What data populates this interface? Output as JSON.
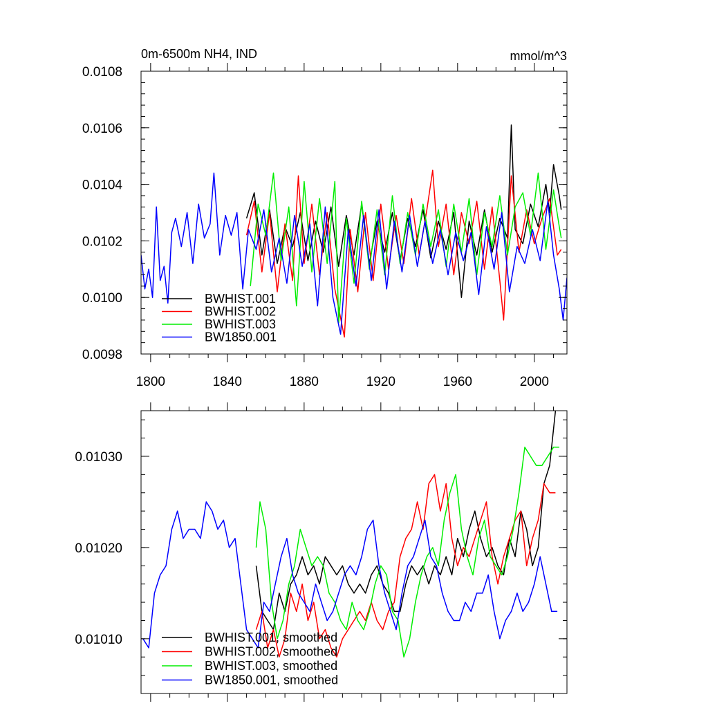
{
  "chart_data": [
    {
      "type": "line",
      "title": "0m-6500m NH4, IND",
      "units": "mmol/m^3",
      "ylim": [
        0.0098,
        0.0108
      ],
      "xlim": [
        1795,
        2017
      ],
      "yticks": [
        0.0098,
        0.01,
        0.0102,
        0.0104,
        0.0106,
        0.0108
      ],
      "ytick_labels": [
        "0.0098",
        "0.0100",
        "0.0102",
        "0.0104",
        "0.0106",
        "0.0108"
      ],
      "xticks": [
        1800,
        1840,
        1880,
        1920,
        1960,
        2000
      ],
      "xtick_labels": [
        "1800",
        "1840",
        "1880",
        "1920",
        "1960",
        "2000"
      ],
      "grid": false,
      "legend_position": "bottom-left",
      "series": [
        {
          "name": "BWHIST.001",
          "color": "#000000",
          "x": [
            1850,
            1854,
            1858,
            1862,
            1866,
            1870,
            1874,
            1878,
            1882,
            1886,
            1890,
            1894,
            1898,
            1902,
            1906,
            1910,
            1914,
            1918,
            1922,
            1926,
            1930,
            1934,
            1938,
            1942,
            1946,
            1950,
            1954,
            1958,
            1962,
            1966,
            1970,
            1974,
            1978,
            1982,
            1986,
            1988,
            1990,
            1994,
            1998,
            2002,
            2006,
            2008,
            2010,
            2013,
            2014
          ],
          "y": [
            0.01028,
            0.01037,
            0.01015,
            0.01031,
            0.01012,
            0.01025,
            0.01018,
            0.0103,
            0.01013,
            0.01027,
            0.01016,
            0.01032,
            0.01011,
            0.01029,
            0.01015,
            0.01033,
            0.01012,
            0.01027,
            0.01016,
            0.0103,
            0.01013,
            0.01028,
            0.01018,
            0.01031,
            0.01014,
            0.01027,
            0.01017,
            0.0103,
            0.01,
            0.01027,
            0.01015,
            0.01031,
            0.01016,
            0.01028,
            0.01021,
            0.01061,
            0.01024,
            0.01019,
            0.01033,
            0.01025,
            0.0104,
            0.0103,
            0.01047,
            0.01036,
            0.01031
          ]
        },
        {
          "name": "BWHIST.002",
          "color": "#ff0000",
          "x": [
            1850,
            1854,
            1858,
            1862,
            1866,
            1870,
            1874,
            1877,
            1880,
            1884,
            1888,
            1892,
            1896,
            1901,
            1904,
            1908,
            1912,
            1916,
            1920,
            1924,
            1928,
            1932,
            1936,
            1940,
            1944,
            1947,
            1950,
            1954,
            1958,
            1962,
            1966,
            1970,
            1974,
            1978,
            1982,
            1984,
            1988,
            1992,
            1996,
            2000,
            2004,
            2008,
            2012,
            2014
          ],
          "y": [
            0.01022,
            0.01034,
            0.01009,
            0.0103,
            0.01002,
            0.01026,
            0.01006,
            0.01043,
            0.01012,
            0.01033,
            0.01008,
            0.0103,
            0.01003,
            0.00986,
            0.01024,
            0.01002,
            0.0103,
            0.01006,
            0.01033,
            0.0101,
            0.01029,
            0.01012,
            0.01035,
            0.01015,
            0.01031,
            0.01045,
            0.01018,
            0.01033,
            0.01008,
            0.0103,
            0.01019,
            0.01034,
            0.0101,
            0.01032,
            0.01006,
            0.00992,
            0.01043,
            0.01016,
            0.01031,
            0.01019,
            0.01028,
            0.01035,
            0.01015,
            0.01017
          ]
        },
        {
          "name": "BWHIST.003",
          "color": "#00ee00",
          "x": [
            1852,
            1856,
            1860,
            1864,
            1868,
            1872,
            1876,
            1880,
            1884,
            1888,
            1892,
            1896,
            1898,
            1902,
            1906,
            1910,
            1914,
            1918,
            1922,
            1926,
            1930,
            1934,
            1938,
            1942,
            1946,
            1950,
            1954,
            1958,
            1962,
            1966,
            1970,
            1974,
            1978,
            1982,
            1986,
            1990,
            1994,
            1998,
            2002,
            2006,
            2010,
            2013,
            2014
          ],
          "y": [
            0.01004,
            0.01033,
            0.01022,
            0.01044,
            0.01013,
            0.01032,
            0.00997,
            0.01041,
            0.01009,
            0.01035,
            0.01012,
            0.01041,
            0.00991,
            0.01028,
            0.01005,
            0.01034,
            0.0101,
            0.01031,
            0.01008,
            0.01036,
            0.01012,
            0.0103,
            0.01015,
            0.01033,
            0.01018,
            0.01031,
            0.01011,
            0.01033,
            0.01016,
            0.01035,
            0.01008,
            0.0103,
            0.01018,
            0.01036,
            0.01015,
            0.01032,
            0.01037,
            0.01022,
            0.01044,
            0.01017,
            0.01038,
            0.01025,
            0.01021
          ]
        },
        {
          "name": "BW1850.001",
          "color": "#0000ff",
          "x": [
            1795,
            1797,
            1799,
            1801,
            1803,
            1805,
            1807,
            1809,
            1811,
            1813,
            1816,
            1819,
            1822,
            1825,
            1828,
            1831,
            1833,
            1836,
            1839,
            1842,
            1845,
            1848,
            1851,
            1855,
            1859,
            1863,
            1867,
            1871,
            1875,
            1879,
            1883,
            1887,
            1891,
            1895,
            1899,
            1903,
            1907,
            1911,
            1915,
            1919,
            1923,
            1927,
            1931,
            1935,
            1939,
            1943,
            1947,
            1951,
            1955,
            1959,
            1963,
            1967,
            1971,
            1975,
            1979,
            1983,
            1987,
            1991,
            1995,
            1999,
            2003,
            2007,
            2010,
            2013,
            2015,
            2017
          ],
          "y": [
            0.01015,
            0.01003,
            0.0101,
            0.01,
            0.01032,
            0.01006,
            0.01011,
            0.00998,
            0.01023,
            0.01028,
            0.01018,
            0.0103,
            0.01012,
            0.01033,
            0.01021,
            0.01026,
            0.01044,
            0.01015,
            0.01029,
            0.01022,
            0.0103,
            0.01003,
            0.01024,
            0.01017,
            0.01031,
            0.01009,
            0.01021,
            0.01005,
            0.01029,
            0.01011,
            0.01026,
            0.00997,
            0.01032,
            0.01,
            0.00987,
            0.01024,
            0.01004,
            0.01029,
            0.01006,
            0.01031,
            0.01003,
            0.01027,
            0.01009,
            0.01029,
            0.01011,
            0.01027,
            0.01012,
            0.01024,
            0.01008,
            0.01023,
            0.01013,
            0.01023,
            0.01001,
            0.01025,
            0.0101,
            0.0103,
            0.01002,
            0.01018,
            0.01012,
            0.01024,
            0.01013,
            0.01034,
            0.01015,
            0.01003,
            0.00992,
            0.01007
          ]
        }
      ]
    },
    {
      "type": "line",
      "ylim": [
        0.01004,
        0.01035
      ],
      "xlim": [
        1795,
        2017
      ],
      "yticks": [
        0.0101,
        0.0102,
        0.0103
      ],
      "ytick_labels": [
        "0.01010",
        "0.01020",
        "0.01030"
      ],
      "xticks": [
        1800,
        1840,
        1880,
        1920,
        1960,
        2000
      ],
      "grid": false,
      "legend_position": "bottom-left",
      "series": [
        {
          "name": "BWHIST.001, smoothed",
          "color": "#000000",
          "x": [
            1855,
            1858,
            1861,
            1864,
            1867,
            1870,
            1873,
            1876,
            1879,
            1882,
            1885,
            1888,
            1891,
            1894,
            1897,
            1900,
            1903,
            1906,
            1909,
            1912,
            1915,
            1918,
            1921,
            1924,
            1927,
            1930,
            1933,
            1936,
            1939,
            1942,
            1945,
            1948,
            1951,
            1954,
            1957,
            1960,
            1963,
            1966,
            1969,
            1972,
            1975,
            1978,
            1981,
            1984,
            1987,
            1990,
            1993,
            1996,
            1999,
            2002,
            2005,
            2008,
            2011
          ],
          "y": [
            0.01018,
            0.01013,
            0.01012,
            0.01011,
            0.01015,
            0.01013,
            0.01016,
            0.01017,
            0.01019,
            0.01017,
            0.01018,
            0.01016,
            0.01019,
            0.01018,
            0.01017,
            0.01018,
            0.01016,
            0.01015,
            0.01016,
            0.01015,
            0.01017,
            0.01018,
            0.01016,
            0.01015,
            0.01013,
            0.01013,
            0.01016,
            0.01018,
            0.01017,
            0.01018,
            0.01016,
            0.01018,
            0.01017,
            0.01019,
            0.01017,
            0.01021,
            0.01019,
            0.01022,
            0.01024,
            0.01021,
            0.01019,
            0.0102,
            0.01018,
            0.01017,
            0.01021,
            0.01019,
            0.01024,
            0.01022,
            0.01018,
            0.0102,
            0.01027,
            0.01029,
            0.01035
          ]
        },
        {
          "name": "BWHIST.002, smoothed",
          "color": "#ff0000",
          "x": [
            1855,
            1858,
            1861,
            1864,
            1867,
            1870,
            1873,
            1876,
            1879,
            1882,
            1885,
            1888,
            1891,
            1894,
            1897,
            1900,
            1903,
            1906,
            1909,
            1912,
            1915,
            1918,
            1921,
            1924,
            1927,
            1930,
            1933,
            1936,
            1939,
            1942,
            1945,
            1948,
            1951,
            1954,
            1957,
            1960,
            1963,
            1966,
            1969,
            1972,
            1975,
            1978,
            1981,
            1984,
            1987,
            1990,
            1993,
            1996,
            1999,
            2002,
            2005,
            2008,
            2011
          ],
          "y": [
            0.01011,
            0.01013,
            0.01009,
            0.01011,
            0.01008,
            0.0101,
            0.01015,
            0.01013,
            0.01016,
            0.01012,
            0.01014,
            0.0101,
            0.01011,
            0.01009,
            0.01008,
            0.0101,
            0.01011,
            0.01012,
            0.01013,
            0.01012,
            0.01014,
            0.01012,
            0.01011,
            0.01013,
            0.01014,
            0.01019,
            0.01021,
            0.01022,
            0.01025,
            0.01022,
            0.01027,
            0.01028,
            0.01024,
            0.01027,
            0.01021,
            0.01018,
            0.0102,
            0.01019,
            0.01021,
            0.01023,
            0.01025,
            0.01019,
            0.01016,
            0.01019,
            0.01021,
            0.01023,
            0.01024,
            0.01018,
            0.01021,
            0.01023,
            0.01027,
            0.01026,
            0.01026
          ]
        },
        {
          "name": "BWHIST.003, smoothed",
          "color": "#00ee00",
          "x": [
            1855,
            1857,
            1860,
            1863,
            1866,
            1869,
            1872,
            1875,
            1878,
            1881,
            1884,
            1887,
            1890,
            1893,
            1896,
            1899,
            1902,
            1905,
            1908,
            1911,
            1914,
            1917,
            1920,
            1923,
            1926,
            1929,
            1932,
            1935,
            1938,
            1941,
            1944,
            1947,
            1950,
            1953,
            1956,
            1959,
            1962,
            1965,
            1968,
            1971,
            1974,
            1977,
            1980,
            1983,
            1986,
            1989,
            1992,
            1995,
            1998,
            2001,
            2004,
            2007,
            2010,
            2013
          ],
          "y": [
            0.0102,
            0.01025,
            0.01022,
            0.01014,
            0.0101,
            0.01012,
            0.01016,
            0.01018,
            0.01022,
            0.0102,
            0.01018,
            0.01019,
            0.01018,
            0.01015,
            0.01014,
            0.01012,
            0.01011,
            0.01014,
            0.01012,
            0.01011,
            0.01013,
            0.01016,
            0.01018,
            0.01017,
            0.01013,
            0.01012,
            0.01008,
            0.0101,
            0.01014,
            0.01017,
            0.01019,
            0.0102,
            0.01018,
            0.01023,
            0.01026,
            0.01028,
            0.01022,
            0.01019,
            0.01017,
            0.01021,
            0.01023,
            0.01019,
            0.01018,
            0.01017,
            0.01019,
            0.01022,
            0.01026,
            0.01031,
            0.0103,
            0.01029,
            0.01029,
            0.0103,
            0.01031,
            0.01031
          ]
        },
        {
          "name": "BW1850.001, smoothed",
          "color": "#0000ff",
          "x": [
            1796,
            1799,
            1802,
            1805,
            1808,
            1811,
            1814,
            1817,
            1820,
            1823,
            1826,
            1829,
            1832,
            1835,
            1838,
            1841,
            1844,
            1847,
            1850,
            1853,
            1856,
            1859,
            1862,
            1865,
            1868,
            1871,
            1874,
            1877,
            1880,
            1883,
            1886,
            1889,
            1892,
            1895,
            1898,
            1901,
            1904,
            1907,
            1910,
            1913,
            1916,
            1919,
            1922,
            1925,
            1928,
            1931,
            1934,
            1937,
            1940,
            1943,
            1946,
            1949,
            1952,
            1955,
            1958,
            1961,
            1964,
            1967,
            1970,
            1973,
            1976,
            1979,
            1982,
            1985,
            1988,
            1991,
            1994,
            1997,
            2000,
            2003,
            2006,
            2009,
            2012
          ],
          "y": [
            0.0101,
            0.01009,
            0.01015,
            0.01017,
            0.01018,
            0.01022,
            0.01024,
            0.01021,
            0.01022,
            0.01022,
            0.01021,
            0.01025,
            0.01024,
            0.01022,
            0.01023,
            0.0102,
            0.01021,
            0.01016,
            0.01011,
            0.0101,
            0.01009,
            0.01014,
            0.01013,
            0.01016,
            0.01019,
            0.01021,
            0.01017,
            0.01015,
            0.01014,
            0.01013,
            0.01016,
            0.01014,
            0.01012,
            0.01013,
            0.01015,
            0.01017,
            0.01018,
            0.01017,
            0.01019,
            0.01022,
            0.01023,
            0.01018,
            0.01015,
            0.01013,
            0.01011,
            0.01015,
            0.01018,
            0.01019,
            0.01021,
            0.01023,
            0.01019,
            0.01018,
            0.01015,
            0.01013,
            0.01012,
            0.01012,
            0.01014,
            0.01013,
            0.01015,
            0.01015,
            0.01017,
            0.01013,
            0.0101,
            0.01012,
            0.01013,
            0.01015,
            0.01013,
            0.01014,
            0.01016,
            0.01019,
            0.01016,
            0.01013,
            0.01013
          ]
        }
      ]
    }
  ]
}
